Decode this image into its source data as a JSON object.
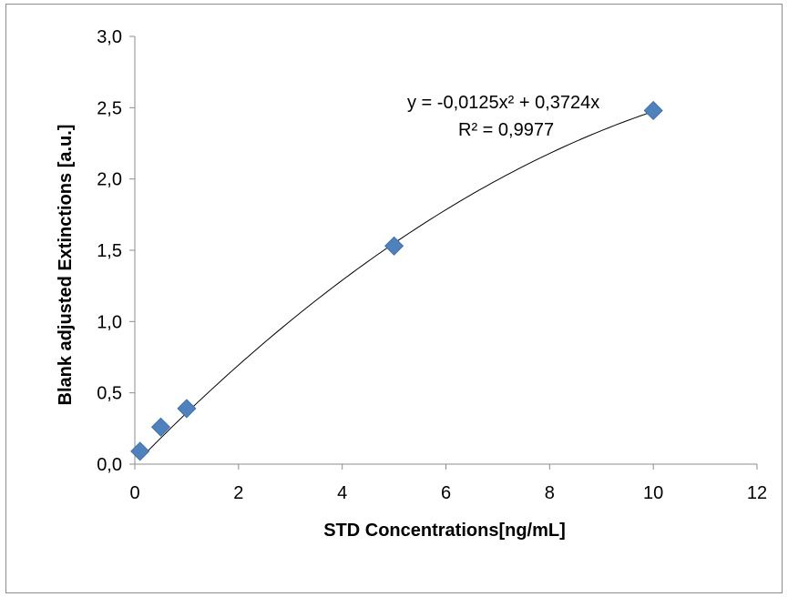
{
  "chart_data": {
    "type": "scatter",
    "xlabel": "STD Concentrations[ng/mL]",
    "ylabel": "Blank adjusted  Extinctions  [a.u.]",
    "xlim": [
      0,
      12
    ],
    "ylim": [
      0,
      3.0
    ],
    "x_ticks": [
      0,
      2,
      4,
      6,
      8,
      10,
      12
    ],
    "y_ticks": [
      0.0,
      0.5,
      1.0,
      1.5,
      2.0,
      2.5,
      3.0
    ],
    "x_tick_labels": [
      "0",
      "2",
      "4",
      "6",
      "8",
      "10",
      "12"
    ],
    "y_tick_labels": [
      "0,0",
      "0,5",
      "1,0",
      "1,5",
      "2,0",
      "2,5",
      "3,0"
    ],
    "grid": false,
    "legend": false,
    "marker_color": "#4F81BD",
    "series": [
      {
        "x": [
          0.1,
          0.5,
          1.0,
          5.0,
          10.0
        ],
        "y": [
          0.09,
          0.26,
          0.39,
          1.53,
          2.48
        ]
      }
    ],
    "trendline": {
      "type": "polynomial",
      "order": 2,
      "coefficients": {
        "a": -0.0125,
        "b": 0.3724,
        "c": 0
      },
      "x_range": [
        0.1,
        10
      ],
      "color": "#000000",
      "equation_label": "y = -0,0125x² + 0,3724x",
      "r2_label": "R² = 0,9977"
    }
  }
}
